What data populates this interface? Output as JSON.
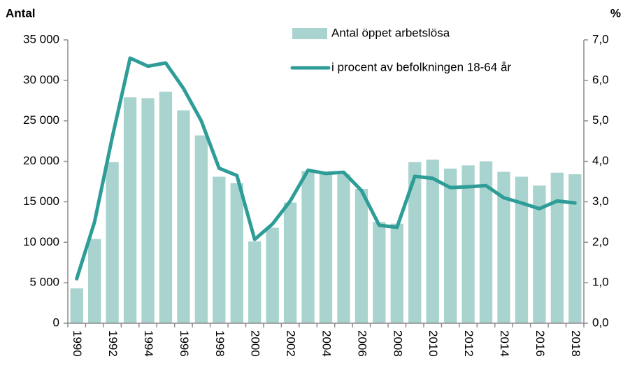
{
  "chart_data": {
    "type": "bar-line",
    "y_label": "Antal",
    "y2_label": "%",
    "categories": [
      "1990",
      null,
      "1992",
      null,
      "1994",
      null,
      "1996",
      null,
      "1998",
      null,
      "2000",
      null,
      "2002",
      null,
      "2004",
      null,
      "2006",
      null,
      "2008",
      null,
      "2010",
      null,
      "2012",
      null,
      "2014",
      null,
      "2016",
      null,
      "2018"
    ],
    "series": [
      {
        "name": "Antal öppet arbetslösa",
        "type": "bar",
        "color": "#a8d3ce",
        "values": [
          4300,
          10400,
          19900,
          27900,
          27800,
          28600,
          26300,
          23200,
          18100,
          17300,
          10100,
          11800,
          14900,
          18800,
          18700,
          18400,
          16600,
          12500,
          12300,
          19900,
          20200,
          19100,
          19500,
          20000,
          18700,
          18100,
          17000,
          18600,
          18400
        ]
      },
      {
        "name": "i procent av befolkningen 18-64 år",
        "type": "line",
        "axis": "y2",
        "color": "#2e9c97",
        "values": [
          1.1,
          2.5,
          4.6,
          6.55,
          6.35,
          6.43,
          5.8,
          5.0,
          3.83,
          3.65,
          2.07,
          2.45,
          3.02,
          3.78,
          3.7,
          3.73,
          3.28,
          2.42,
          2.37,
          3.63,
          3.58,
          3.35,
          3.37,
          3.4,
          3.1,
          2.97,
          2.83,
          3.02,
          2.97
        ]
      }
    ],
    "ylim": [
      0,
      35000
    ],
    "yticks": [
      0,
      {
        "value": 5000,
        "label": "5 000"
      },
      {
        "value": 10000,
        "label": "10 000"
      },
      {
        "value": 15000,
        "label": "15 000"
      },
      {
        "value": 20000,
        "label": "20 000"
      },
      {
        "value": 25000,
        "label": "25 000"
      },
      {
        "value": 30000,
        "label": "30 000"
      },
      {
        "value": 35000,
        "label": "35 000"
      }
    ],
    "y2lim": [
      0,
      7
    ],
    "y2ticks": [
      {
        "value": 0,
        "label": "0,0"
      },
      {
        "value": 1,
        "label": "1,0"
      },
      {
        "value": 2,
        "label": "2,0"
      },
      {
        "value": 3,
        "label": "3,0"
      },
      {
        "value": 4,
        "label": "4,0"
      },
      {
        "value": 5,
        "label": "5,0"
      },
      {
        "value": 6,
        "label": "6,0"
      },
      {
        "value": 7,
        "label": "7,0"
      }
    ]
  }
}
